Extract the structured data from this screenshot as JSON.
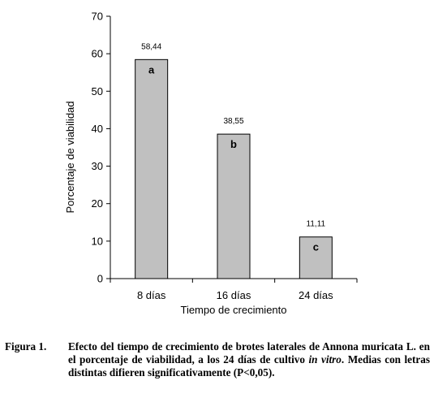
{
  "chart_data": {
    "type": "bar",
    "categories": [
      "8 días",
      "16 días",
      "24 días"
    ],
    "values": [
      58.44,
      38.55,
      11.11
    ],
    "value_labels": [
      "58,44",
      "38,55",
      "11,11"
    ],
    "letters": [
      "a",
      "b",
      "c"
    ],
    "xlabel": "Tiempo de crecimiento",
    "ylabel": "Porcentaje de viabilidad",
    "ylim": [
      0,
      70
    ],
    "yticks": [
      0,
      10,
      20,
      30,
      40,
      50,
      60,
      70
    ],
    "grid": false,
    "bar_color": "#c0c0c0"
  },
  "caption": {
    "label": "Figura 1.",
    "text_before": "Efecto del tiempo de crecimiento de brotes laterales de Annona muricata L. en el porcentaje de viabilidad, a los 24 días de cultivo ",
    "italic": "in vitro",
    "text_after": ". Medias con letras distintas difieren significativamente (P<0,05)."
  }
}
